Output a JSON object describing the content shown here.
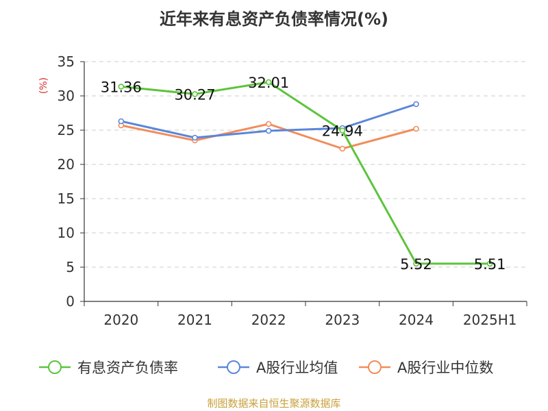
{
  "chart_data": {
    "type": "line",
    "title": "近年来有息资产负债率情况(%)",
    "ylabel": "(%)",
    "xlabel": "",
    "categories": [
      "2020",
      "2021",
      "2022",
      "2023",
      "2024",
      "2025H1"
    ],
    "ylim": [
      0,
      35
    ],
    "yticks": [
      0,
      5,
      10,
      15,
      20,
      25,
      30,
      35
    ],
    "grid": true,
    "legend_position": "bottom",
    "series": [
      {
        "name": "有息资产负债率",
        "color": "#5cc43b",
        "values": [
          31.36,
          30.27,
          32.01,
          24.94,
          5.52,
          5.51
        ],
        "labels": [
          "31.36",
          "30.27",
          "32.01",
          "24.94",
          "5.52",
          "5.51"
        ]
      },
      {
        "name": "A股行业均值",
        "color": "#5b86d8",
        "values": [
          26.3,
          23.9,
          24.9,
          25.3,
          28.8,
          null
        ]
      },
      {
        "name": "A股行业中位数",
        "color": "#f28c5a",
        "values": [
          25.7,
          23.5,
          25.9,
          22.3,
          25.2,
          null
        ]
      }
    ]
  },
  "source": "制图数据来自恒生聚源数据库"
}
